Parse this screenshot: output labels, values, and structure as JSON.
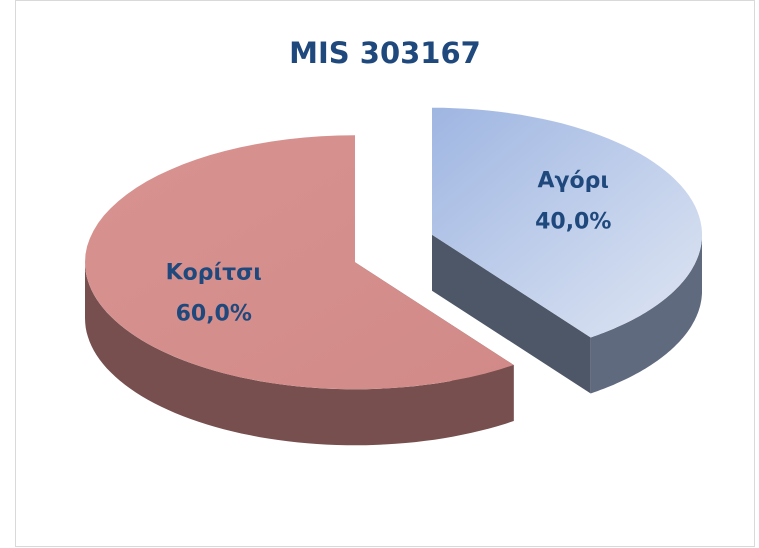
{
  "chart_data": {
    "type": "pie",
    "title": "MIS 303167",
    "categories": [
      "Αγόρι",
      "Κορίτσι"
    ],
    "values": [
      40,
      60
    ],
    "value_labels": [
      "40,0%",
      "60,0%"
    ],
    "colors": [
      "#adc1e6",
      "#d68f8d"
    ]
  }
}
